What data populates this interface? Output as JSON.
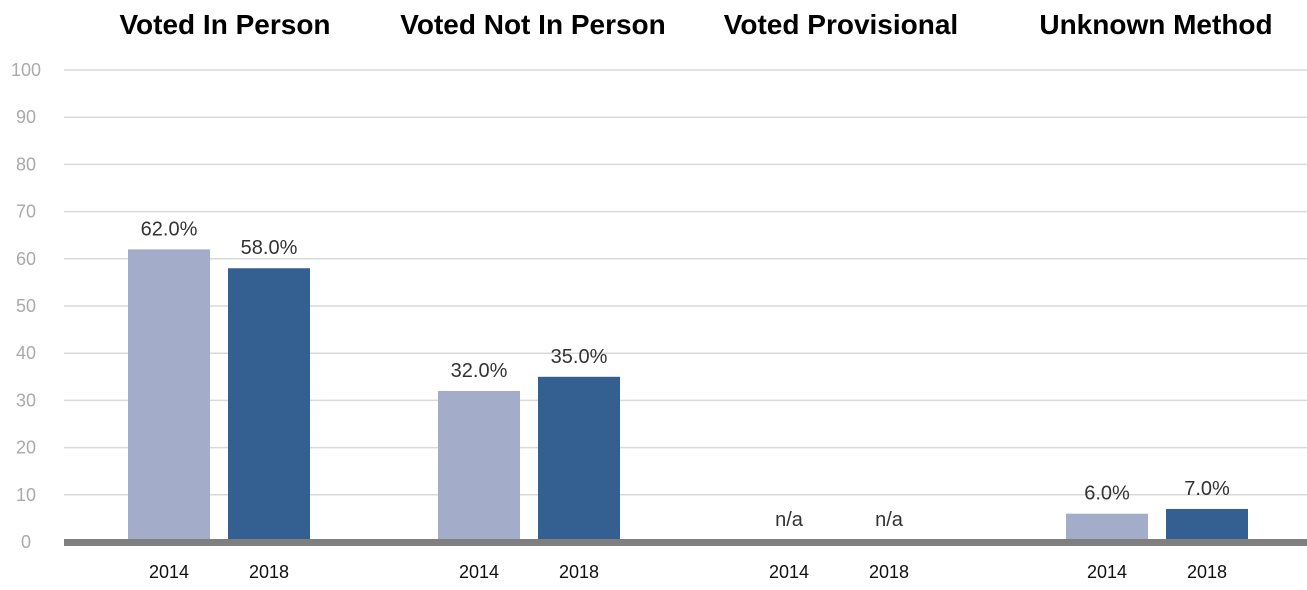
{
  "chart_data": {
    "type": "bar",
    "ylim": [
      0,
      100
    ],
    "y_ticks": [
      0,
      10,
      20,
      30,
      40,
      50,
      60,
      70,
      80,
      90,
      100
    ],
    "grid": true,
    "groups": [
      {
        "title": "Voted In Person",
        "bars": [
          {
            "label": "2014",
            "value": 62,
            "value_label": "62.0%"
          },
          {
            "label": "2018",
            "value": 58,
            "value_label": "58.0%"
          }
        ]
      },
      {
        "title": "Voted Not In Person",
        "bars": [
          {
            "label": "2014",
            "value": 32,
            "value_label": "32.0%"
          },
          {
            "label": "2018",
            "value": 35,
            "value_label": "35.0%"
          }
        ]
      },
      {
        "title": "Voted Provisional",
        "bars": [
          {
            "label": "2014",
            "value": null,
            "value_label": "n/a"
          },
          {
            "label": "2018",
            "value": null,
            "value_label": "n/a"
          }
        ]
      },
      {
        "title": "Unknown Method",
        "bars": [
          {
            "label": "2014",
            "value": 6,
            "value_label": "6.0%"
          },
          {
            "label": "2018",
            "value": 7,
            "value_label": "7.0%"
          }
        ]
      }
    ],
    "colors": {
      "2014": "#a3adc9",
      "2018": "#335f91",
      "baseline": "#7f7f7f",
      "grid": "#d9d9d9"
    }
  }
}
